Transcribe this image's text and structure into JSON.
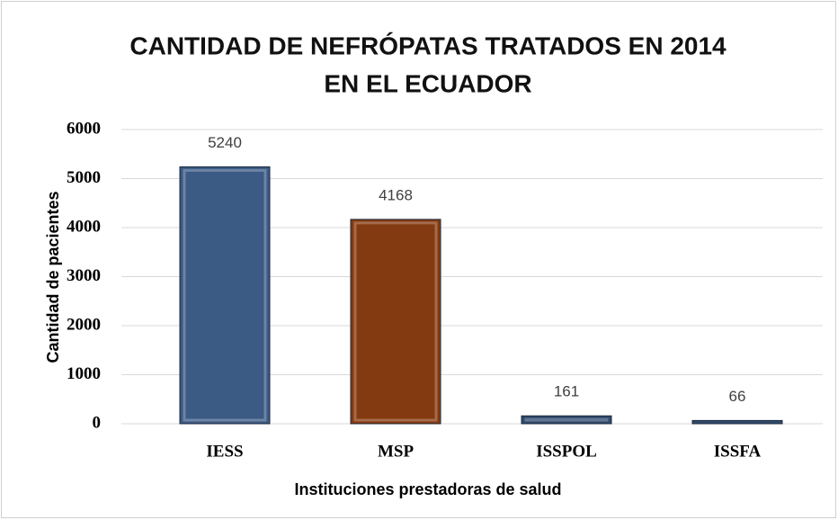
{
  "chart_data": {
    "type": "bar",
    "title": [
      "CANTIDAD DE NEFRÓPATAS TRATADOS EN 2014",
      "EN EL ECUADOR"
    ],
    "x_label": "Instituciones prestadoras de salud",
    "y_label": "Cantidad de pacientes",
    "categories": [
      "IESS",
      "MSP",
      "ISSPOL",
      "ISSFA"
    ],
    "values": [
      5240,
      4168,
      161,
      66
    ],
    "colors": [
      "#3b5a84",
      "#843a10",
      "#2f4a6e",
      "#2f4a6e"
    ],
    "ylim": [
      0,
      6000
    ],
    "yticks": [
      0,
      1000,
      2000,
      3000,
      4000,
      5000,
      6000
    ],
    "grid": true
  }
}
